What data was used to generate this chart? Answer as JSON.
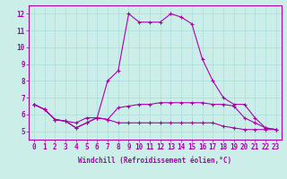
{
  "xlabel": "Windchill (Refroidissement éolien,°C)",
  "background_color": "#cceee8",
  "grid_color": "#aadddd",
  "line_color": "#aa00aa",
  "xlim_min": -0.5,
  "xlim_max": 23.5,
  "ylim_min": 4.5,
  "ylim_max": 12.5,
  "yticks": [
    5,
    6,
    7,
    8,
    9,
    10,
    11,
    12
  ],
  "xticks": [
    0,
    1,
    2,
    3,
    4,
    5,
    6,
    7,
    8,
    9,
    10,
    11,
    12,
    13,
    14,
    15,
    16,
    17,
    18,
    19,
    20,
    21,
    22,
    23
  ],
  "series": [
    [
      6.6,
      6.3,
      5.7,
      5.6,
      5.2,
      5.5,
      5.8,
      5.7,
      5.5,
      5.5,
      5.5,
      5.5,
      5.5,
      5.5,
      5.5,
      5.5,
      5.5,
      5.5,
      5.3,
      5.2,
      5.1,
      5.1,
      5.1,
      5.1
    ],
    [
      6.6,
      6.3,
      5.7,
      5.6,
      5.2,
      5.5,
      5.8,
      5.7,
      6.4,
      6.5,
      6.6,
      6.6,
      6.7,
      6.7,
      6.7,
      6.7,
      6.7,
      6.6,
      6.6,
      6.5,
      5.8,
      5.5,
      5.2,
      5.1
    ],
    [
      6.6,
      6.3,
      5.7,
      5.6,
      5.5,
      5.8,
      5.8,
      8.0,
      8.6,
      12.0,
      11.5,
      11.5,
      11.5,
      12.0,
      11.8,
      11.4,
      9.3,
      8.0,
      7.0,
      6.6,
      6.6,
      5.8,
      5.2,
      5.1
    ]
  ],
  "xlabel_fontsize": 5.5,
  "tick_fontsize": 5.5,
  "linewidth": 0.8,
  "markersize": 3
}
